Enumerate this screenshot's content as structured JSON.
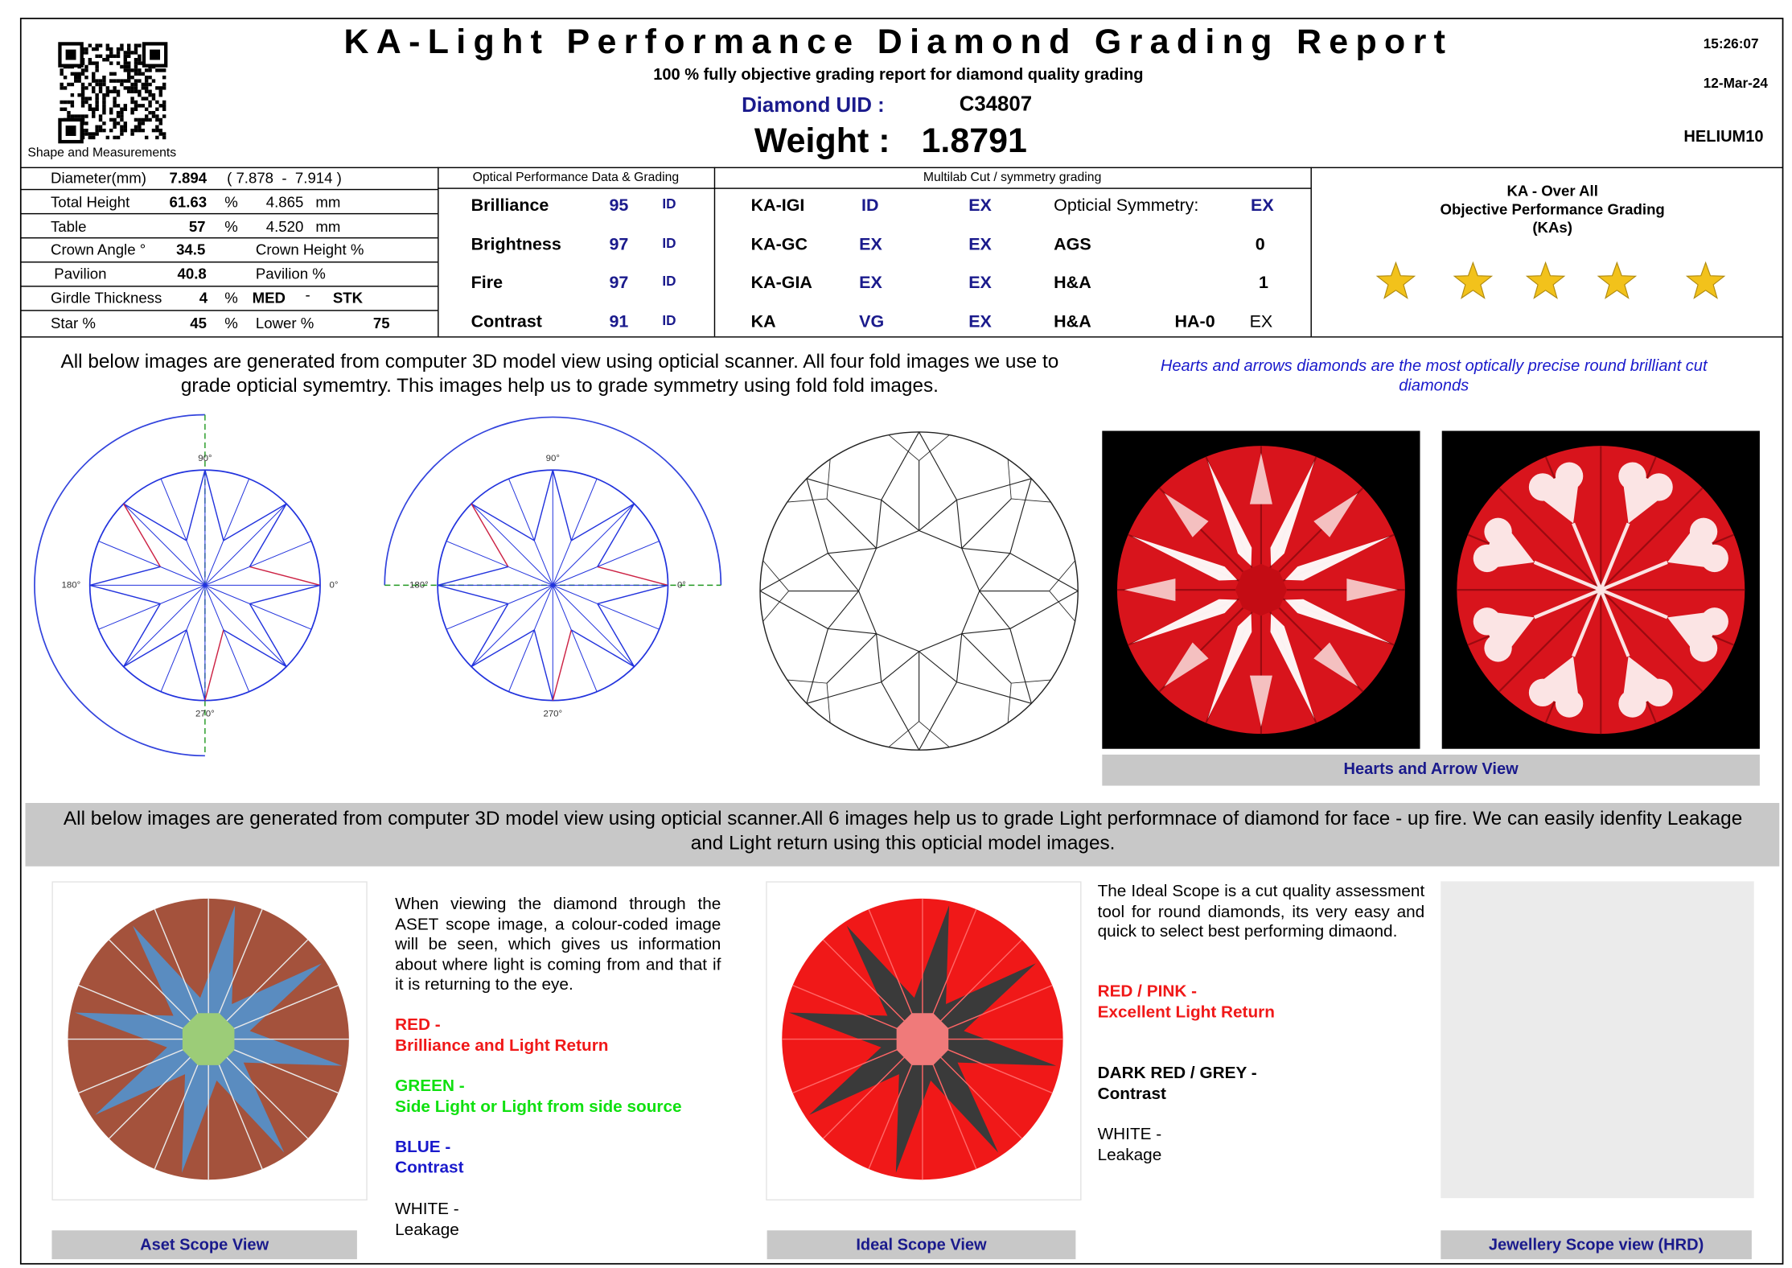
{
  "header": {
    "title": "KA-Light  Performance Diamond Grading Report",
    "subtitle": "100 % fully objective grading report for diamond quality grading",
    "uid_label": "Diamond UID :",
    "uid": "C34807",
    "weight_label": "Weight :",
    "weight": "1.8791",
    "time": "15:26:07",
    "date": "12-Mar-24",
    "machine": "HELIUM10",
    "qr_caption": "Shape and Measurements"
  },
  "measurements": {
    "rows": [
      [
        "Diameter(mm)",
        "7.894",
        "( 7.878  -  7.914 )"
      ],
      [
        "Total Height",
        "61.63",
        "%",
        "4.865",
        "mm"
      ],
      [
        "Table",
        "57",
        "%",
        "4.520",
        "mm"
      ],
      [
        "Crown Angle °",
        "34.5",
        "Crown Height %"
      ],
      [
        "Pavilion",
        "40.8",
        "Pavilion %"
      ],
      [
        "Girdle Thickness",
        "4",
        "%",
        "MED",
        "-",
        "STK"
      ],
      [
        "Star %",
        "45",
        "%",
        "Lower %",
        "75"
      ]
    ]
  },
  "optical": {
    "title": "Optical Performance Data & Grading",
    "rows": [
      [
        "Brilliance",
        "95",
        "ID"
      ],
      [
        "Brightness",
        "97",
        "ID"
      ],
      [
        "Fire",
        "97",
        "ID"
      ],
      [
        "Contrast",
        "91",
        "ID"
      ]
    ]
  },
  "multilab": {
    "title": "Multilab Cut / symmetry grading",
    "rows": [
      [
        "KA-IGI",
        "ID",
        "EX"
      ],
      [
        "KA-GC",
        "EX",
        "EX"
      ],
      [
        "KA-GIA",
        "EX",
        "EX"
      ],
      [
        "KA",
        "VG",
        "EX"
      ]
    ],
    "symmetry": [
      [
        "Opticial Symmetry:",
        "EX"
      ],
      [
        "AGS",
        "0"
      ],
      [
        "H&A",
        "1"
      ],
      [
        "H&A",
        "HA-0",
        "EX"
      ]
    ]
  },
  "overall": {
    "lines": [
      "KA - Over All",
      "Objective Performance Grading",
      "(KAs)"
    ]
  },
  "symmetry_section": {
    "intro": "All below images are generated from computer 3D model view using opticial scanner. All four fold images we use to grade opticial symemtry. This images help us to grade symmetry using fold fold images.",
    "hearts_note": "Hearts and arrows diamonds are the most optically precise round brilliant cut diamonds",
    "fold_labels": [
      "90°",
      "0°",
      "180°",
      "270°"
    ],
    "hearts_caption": "Hearts and Arrow View"
  },
  "light_section": {
    "banner": "All below images are generated from computer 3D model view using opticial scanner.All 6 images help us to grade Light performnace of diamond for face - up fire.  We can easily idenfity Leakage and Light return using this opticial model images.",
    "aset": {
      "caption": "Aset Scope View",
      "description": "When viewing the diamond through the ASET scope image, a colour-coded image will be seen, which gives us information about where light is coming from and that if it is returning to the eye.",
      "legend": [
        [
          "RED -",
          "Brilliance and Light Return"
        ],
        [
          "GREEN -",
          "Side Light or Light from side source"
        ],
        [
          "BLUE -",
          "Contrast"
        ],
        [
          "WHITE -",
          "Leakage"
        ]
      ]
    },
    "ideal": {
      "caption": "Ideal Scope View",
      "description": "The Ideal Scope is a cut quality assessment tool for round diamonds, its very easy and quick to select best performing dimaond.",
      "legend": [
        [
          "RED / PINK -",
          "Excellent Light Return"
        ],
        [
          "DARK RED / GREY -",
          "Contrast"
        ],
        [
          "WHITE -",
          "Leakage"
        ]
      ]
    },
    "hrd": {
      "caption": "Jewellery Scope view (HRD)"
    }
  }
}
